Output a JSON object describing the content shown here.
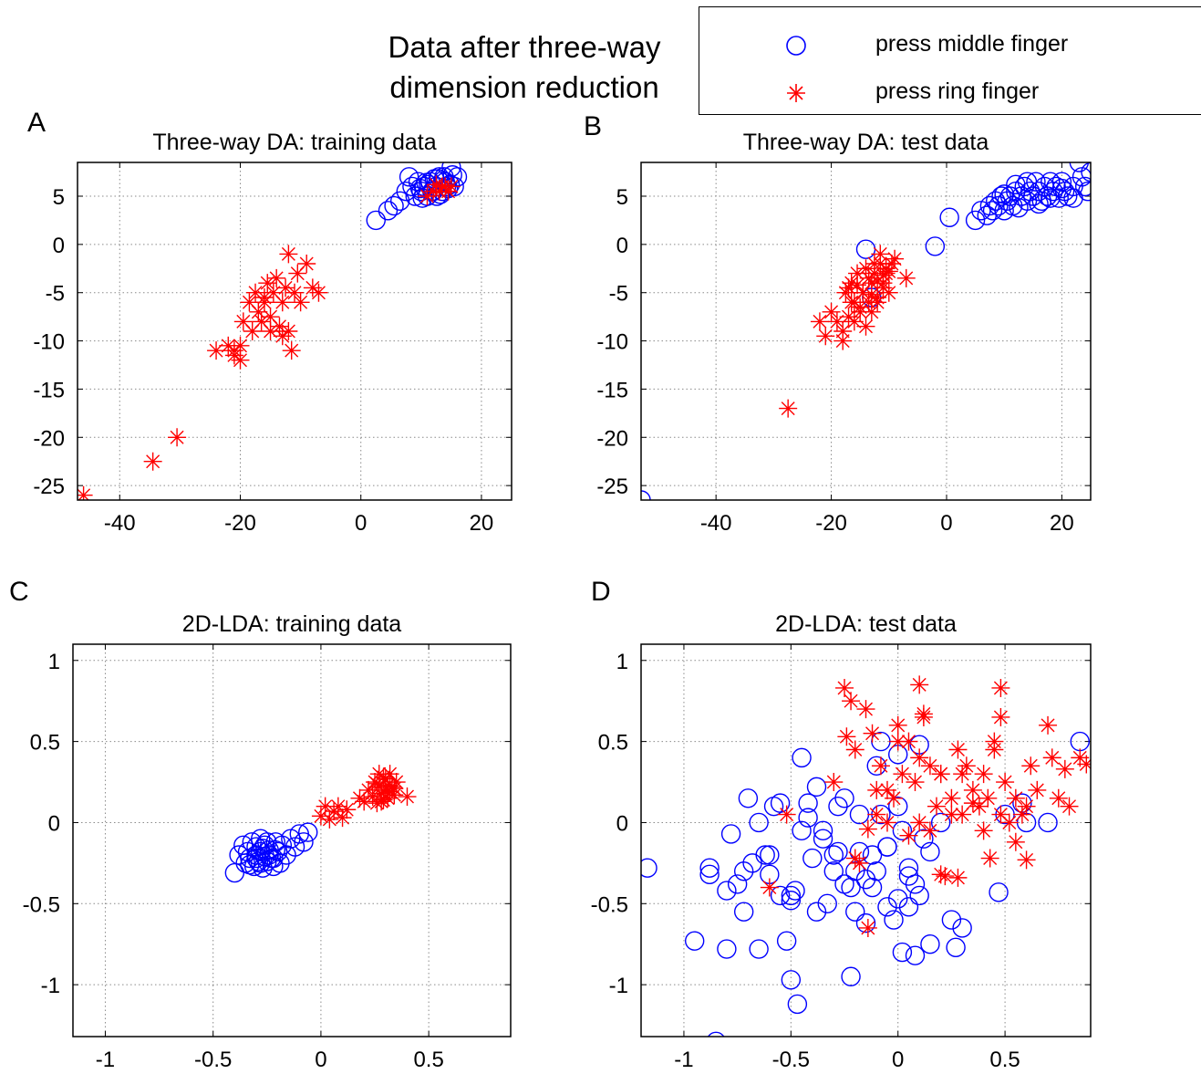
{
  "figure": {
    "title_line1": "Data after three-way",
    "title_line2": "dimension reduction",
    "legend": [
      {
        "label": "press middle finger",
        "marker": "circle",
        "color": "#0000ff"
      },
      {
        "label": "press ring finger",
        "marker": "asterisk",
        "color": "#ff0000"
      }
    ]
  },
  "chart_data": [
    {
      "panel": "A",
      "type": "scatter",
      "title": "Three-way DA: training data",
      "xlim": [
        -47,
        25
      ],
      "ylim": [
        -26.5,
        8.5
      ],
      "xticks": [
        -40,
        -20,
        0,
        20
      ],
      "yticks": [
        -25,
        -20,
        -15,
        -10,
        -5,
        0,
        5
      ],
      "xticklabels": [
        "-40",
        "-20",
        "0",
        "20"
      ],
      "yticklabels": [
        "-25",
        "-20",
        "-15",
        "-10",
        "-5",
        "0",
        "5"
      ],
      "grid": true,
      "series": [
        {
          "name": "press middle finger",
          "marker": "circle",
          "color": "#0000ff",
          "x": [
            2.5,
            4.5,
            5.5,
            6.5,
            7.5,
            8.5,
            9.0,
            9.5,
            10.0,
            10.5,
            11.0,
            11.5,
            12.0,
            12.5,
            13.0,
            13.5,
            14.0,
            14.5,
            15.0,
            15.5,
            16.0,
            9.8,
            11.2,
            12.8,
            13.2,
            14.2,
            15.2,
            8.0,
            10.2,
            12.2,
            13.8,
            14.8,
            11.8,
            10.8,
            12.6,
            13.6
          ],
          "y": [
            2.5,
            3.5,
            4.0,
            4.5,
            5.5,
            6.0,
            5.0,
            6.5,
            5.5,
            6.0,
            5.0,
            6.5,
            5.5,
            6.0,
            7.0,
            5.5,
            6.5,
            5.8,
            8.0,
            6.0,
            7.0,
            5.8,
            6.2,
            6.8,
            5.2,
            6.0,
            7.2,
            7.0,
            4.8,
            6.8,
            7.0,
            6.2,
            5.5,
            6.4,
            5.0,
            6.6
          ]
        },
        {
          "name": "press ring finger",
          "marker": "asterisk",
          "color": "#ff0000",
          "x": [
            -46,
            -34.5,
            -30.5,
            -24,
            -22,
            -21,
            -20,
            -19.5,
            -18.5,
            -18,
            -17.5,
            -17,
            -16.5,
            -16,
            -15.5,
            -15,
            -14.5,
            -14,
            -13.5,
            -13,
            -12.5,
            -12,
            -11.5,
            -11,
            -10.5,
            -10,
            -9,
            -8,
            -7,
            -12,
            -13,
            -15,
            -16,
            -20,
            -21,
            11,
            12,
            13,
            14,
            15,
            14.5,
            13.5,
            12.5
          ],
          "y": [
            -26,
            -22.5,
            -20,
            -11,
            -10.5,
            -11.5,
            -12,
            -8,
            -6,
            -9,
            -5,
            -7,
            -8,
            -6,
            -4,
            -9,
            -5,
            -3.5,
            -8.5,
            -6,
            -4.5,
            -1,
            -11,
            -5,
            -3,
            -6,
            -2,
            -4.5,
            -5,
            -9,
            -9.5,
            -7.5,
            -5.5,
            -10.5,
            -11,
            5,
            5.5,
            5.5,
            6,
            6,
            5.5,
            6,
            6.2
          ]
        }
      ]
    },
    {
      "panel": "B",
      "type": "scatter",
      "title": "Three-way DA: test data",
      "xlim": [
        -53,
        25
      ],
      "ylim": [
        -26.5,
        8.5
      ],
      "xticks": [
        -40,
        -20,
        0,
        20
      ],
      "yticks": [
        -25,
        -20,
        -15,
        -10,
        -5,
        0,
        5
      ],
      "xticklabels": [
        "-40",
        "-20",
        "0",
        "20"
      ],
      "yticklabels": [
        "-25",
        "-20",
        "-15",
        "-10",
        "-5",
        "0",
        "5"
      ],
      "grid": true,
      "series": [
        {
          "name": "press middle finger",
          "marker": "circle",
          "color": "#0000ff",
          "x": [
            -53,
            -2,
            0.5,
            5,
            6,
            7,
            7.5,
            8,
            8.5,
            9,
            9.5,
            10,
            10.5,
            11,
            11.5,
            12,
            12.5,
            13,
            13.5,
            14,
            14.5,
            15,
            15.5,
            16,
            16.5,
            17,
            17.5,
            18,
            18.5,
            19,
            19.5,
            20,
            20.5,
            21,
            22,
            23,
            23.5,
            24,
            24.5,
            25,
            -14,
            -13,
            10,
            12,
            14,
            16,
            18,
            20,
            22
          ],
          "y": [
            -26.5,
            -0.2,
            2.8,
            2.5,
            3.5,
            3.0,
            4.0,
            3.5,
            4.5,
            4.0,
            5.0,
            3.5,
            4.5,
            5.0,
            4.0,
            5.5,
            3.8,
            5.0,
            6.0,
            4.5,
            5.5,
            5.0,
            6.5,
            5.5,
            4.5,
            6.0,
            5.0,
            6.5,
            5.5,
            6.0,
            4.8,
            6.5,
            5.5,
            5.0,
            6.0,
            8.5,
            7.0,
            6.0,
            5.5,
            7.5,
            -0.5,
            -5.5,
            5.2,
            6.2,
            6.5,
            4.2,
            4.8,
            5.8,
            4.8
          ]
        },
        {
          "name": "press ring finger",
          "marker": "asterisk",
          "color": "#ff0000",
          "x": [
            -27.5,
            -22,
            -21,
            -20,
            -19,
            -18,
            -17.5,
            -17,
            -16.5,
            -16,
            -15.5,
            -15,
            -14.5,
            -14,
            -13.5,
            -13,
            -12.5,
            -12,
            -11.5,
            -11,
            -10.5,
            -10,
            -9.5,
            -9,
            -7,
            -16,
            -15,
            -14,
            -13,
            -12,
            -11,
            -18,
            -17,
            -13.5,
            -12.5,
            -11.5,
            -10.5,
            -14.5,
            -15.5,
            -16.5,
            -12,
            -13,
            -11,
            -10
          ],
          "y": [
            -17,
            -8,
            -9.5,
            -7,
            -8,
            -9,
            -5,
            -7.5,
            -4,
            -6,
            -3,
            -7,
            -5,
            -2.5,
            -6,
            -4,
            -3,
            -5.5,
            -2,
            -4,
            -3,
            -5,
            -2,
            -1.5,
            -3.5,
            -8,
            -6.5,
            -8.5,
            -7,
            -6,
            -4.5,
            -10,
            -4.5,
            -3.5,
            -2,
            -1,
            -2.5,
            -5,
            -4.2,
            -6,
            -3.8,
            -5.2,
            -3.2,
            -2.8
          ]
        }
      ]
    },
    {
      "panel": "C",
      "type": "scatter",
      "title": "2D-LDA: training data",
      "xlim": [
        -1.15,
        0.88
      ],
      "ylim": [
        -1.32,
        1.1
      ],
      "xticks": [
        -1,
        -0.5,
        0,
        0.5
      ],
      "yticks": [
        -1,
        -0.5,
        0,
        0.5,
        1
      ],
      "xticklabels": [
        "-1",
        "-0.5",
        "0",
        "0.5"
      ],
      "yticklabels": [
        "-1",
        "-0.5",
        "0",
        "0.5",
        "1"
      ],
      "grid": true,
      "series": [
        {
          "name": "press middle finger",
          "marker": "circle",
          "color": "#0000ff",
          "x": [
            -0.4,
            -0.38,
            -0.36,
            -0.35,
            -0.34,
            -0.33,
            -0.32,
            -0.31,
            -0.3,
            -0.3,
            -0.29,
            -0.28,
            -0.28,
            -0.27,
            -0.26,
            -0.26,
            -0.25,
            -0.24,
            -0.23,
            -0.22,
            -0.21,
            -0.2,
            -0.19,
            -0.18,
            -0.16,
            -0.14,
            -0.12,
            -0.1,
            -0.08,
            -0.06,
            -0.33,
            -0.3,
            -0.27,
            -0.24,
            -0.21,
            -0.28,
            -0.25,
            -0.22
          ],
          "y": [
            -0.31,
            -0.2,
            -0.14,
            -0.25,
            -0.18,
            -0.22,
            -0.12,
            -0.27,
            -0.2,
            -0.15,
            -0.24,
            -0.18,
            -0.1,
            -0.28,
            -0.21,
            -0.14,
            -0.24,
            -0.17,
            -0.22,
            -0.27,
            -0.12,
            -0.18,
            -0.25,
            -0.14,
            -0.2,
            -0.1,
            -0.15,
            -0.07,
            -0.12,
            -0.06,
            -0.26,
            -0.22,
            -0.16,
            -0.2,
            -0.17,
            -0.25,
            -0.12,
            -0.22
          ]
        },
        {
          "name": "press ring finger",
          "marker": "asterisk",
          "color": "#ff0000",
          "x": [
            0.0,
            0.02,
            0.04,
            0.06,
            0.08,
            0.1,
            0.12,
            0.18,
            0.2,
            0.22,
            0.24,
            0.25,
            0.26,
            0.27,
            0.28,
            0.29,
            0.3,
            0.31,
            0.32,
            0.33,
            0.34,
            0.35,
            0.4,
            0.26,
            0.28,
            0.3,
            0.32,
            0.34,
            0.27,
            0.29,
            0.31
          ],
          "y": [
            0.04,
            0.1,
            0.02,
            0.07,
            0.1,
            0.03,
            0.08,
            0.15,
            0.13,
            0.2,
            0.16,
            0.25,
            0.12,
            0.22,
            0.18,
            0.28,
            0.2,
            0.15,
            0.3,
            0.22,
            0.17,
            0.25,
            0.16,
            0.24,
            0.13,
            0.27,
            0.19,
            0.21,
            0.3,
            0.14,
            0.23
          ]
        }
      ]
    },
    {
      "panel": "D",
      "type": "scatter",
      "title": "2D-LDA: test data",
      "xlim": [
        -1.2,
        0.9
      ],
      "ylim": [
        -1.32,
        1.1
      ],
      "xticks": [
        -1,
        -0.5,
        0,
        0.5
      ],
      "yticks": [
        -1,
        -0.5,
        0,
        0.5,
        1
      ],
      "xticklabels": [
        "-1",
        "-0.5",
        "0",
        "0.5"
      ],
      "yticklabels": [
        "-1",
        "-0.5",
        "0",
        "0.5",
        "1"
      ],
      "grid": true,
      "series": [
        {
          "name": "press middle finger",
          "marker": "circle",
          "color": "#0000ff",
          "x": [
            -1.17,
            -0.95,
            -0.88,
            -0.85,
            -0.8,
            -0.78,
            -0.75,
            -0.72,
            -0.7,
            -0.68,
            -0.65,
            -0.62,
            -0.6,
            -0.58,
            -0.55,
            -0.52,
            -0.5,
            -0.5,
            -0.48,
            -0.45,
            -0.42,
            -0.4,
            -0.38,
            -0.35,
            -0.33,
            -0.3,
            -0.28,
            -0.25,
            -0.22,
            -0.2,
            -0.18,
            -0.15,
            -0.12,
            -0.1,
            -0.08,
            -0.05,
            -0.02,
            0.0,
            0.02,
            0.05,
            0.08,
            0.1,
            0.12,
            0.15,
            0.2,
            0.25,
            0.27,
            0.3,
            0.47,
            0.5,
            0.58,
            0.6,
            0.7,
            0.85,
            -0.88,
            -0.8,
            -0.72,
            -0.6,
            -0.5,
            -0.47,
            -0.35,
            -0.22,
            -0.15,
            -0.1,
            -0.05,
            0.0,
            0.05,
            0.1,
            0.15,
            -0.55,
            -0.45,
            -0.38,
            -0.3,
            -0.25,
            -0.18,
            -0.12,
            -0.05,
            0.02,
            0.08,
            -0.65,
            -0.42,
            -0.28,
            -0.2,
            -0.08,
            0.0,
            0.05
          ],
          "y": [
            -0.28,
            -0.73,
            -0.28,
            -1.35,
            -0.78,
            -0.07,
            -0.38,
            -0.55,
            0.15,
            -0.25,
            -0.78,
            -0.2,
            -0.32,
            0.1,
            -0.45,
            -0.73,
            -0.97,
            -0.48,
            -0.42,
            0.4,
            0.03,
            -0.22,
            -0.55,
            -0.05,
            -0.5,
            -0.3,
            0.1,
            -0.38,
            -0.95,
            -0.55,
            -0.18,
            -0.62,
            -0.4,
            -0.3,
            0.5,
            -0.52,
            -0.6,
            -0.47,
            -0.8,
            -0.52,
            -0.82,
            -0.45,
            -0.1,
            -0.75,
            0.0,
            -0.6,
            -0.77,
            -0.65,
            -0.43,
            0.05,
            0.12,
            0.0,
            0.0,
            0.5,
            -0.32,
            -0.42,
            -0.3,
            -0.2,
            -0.45,
            -1.12,
            -0.1,
            -0.4,
            -0.35,
            0.35,
            -0.15,
            0.42,
            -0.28,
            0.48,
            -0.18,
            0.12,
            -0.05,
            0.22,
            -0.2,
            0.15,
            0.05,
            -0.2,
            -0.15,
            -0.05,
            -0.38,
            0.0,
            0.12,
            -0.18,
            -0.3,
            0.05,
            0.1,
            -0.33
          ]
        },
        {
          "name": "press ring finger",
          "marker": "asterisk",
          "color": "#ff0000",
          "x": [
            -0.6,
            -0.52,
            -0.3,
            -0.25,
            -0.22,
            -0.2,
            -0.15,
            -0.12,
            -0.1,
            -0.08,
            -0.05,
            -0.02,
            0.0,
            0.02,
            0.05,
            0.08,
            0.1,
            0.12,
            0.15,
            0.18,
            0.2,
            0.22,
            0.25,
            0.28,
            0.3,
            0.32,
            0.35,
            0.38,
            0.4,
            0.42,
            0.45,
            0.48,
            0.5,
            0.52,
            0.55,
            0.58,
            0.6,
            0.62,
            0.65,
            0.7,
            0.72,
            0.75,
            0.78,
            0.8,
            0.85,
            0.88,
            -0.24,
            -0.18,
            -0.14,
            0.1,
            0.12,
            -0.14,
            0.2,
            0.28,
            0.43,
            0.48,
            0.48,
            0.6,
            -0.05,
            0.05,
            0.15,
            0.25,
            0.35,
            -0.2,
            0.0,
            0.2,
            0.4,
            0.55,
            -0.1,
            0.1,
            0.3,
            0.45
          ],
          "y": [
            -0.4,
            0.05,
            0.25,
            0.83,
            0.75,
            0.45,
            0.7,
            0.55,
            0.05,
            0.35,
            0.2,
            0.15,
            0.6,
            0.3,
            0.5,
            0.25,
            0.4,
            0.65,
            0.35,
            0.1,
            0.3,
            -0.33,
            0.15,
            0.45,
            0.05,
            0.35,
            0.2,
            0.1,
            0.3,
            0.15,
            0.45,
            0.05,
            0.25,
            0.0,
            0.15,
            0.05,
            0.1,
            0.35,
            0.2,
            0.6,
            0.4,
            0.15,
            0.33,
            0.1,
            0.4,
            0.36,
            0.53,
            -0.25,
            -0.65,
            0.85,
            0.67,
            -0.04,
            -0.32,
            -0.34,
            -0.22,
            0.83,
            0.65,
            -0.23,
            0.0,
            -0.08,
            -0.05,
            0.05,
            0.12,
            -0.22,
            0.5,
            0.3,
            -0.05,
            -0.12,
            0.2,
            0.0,
            0.3,
            0.5
          ]
        }
      ]
    }
  ]
}
